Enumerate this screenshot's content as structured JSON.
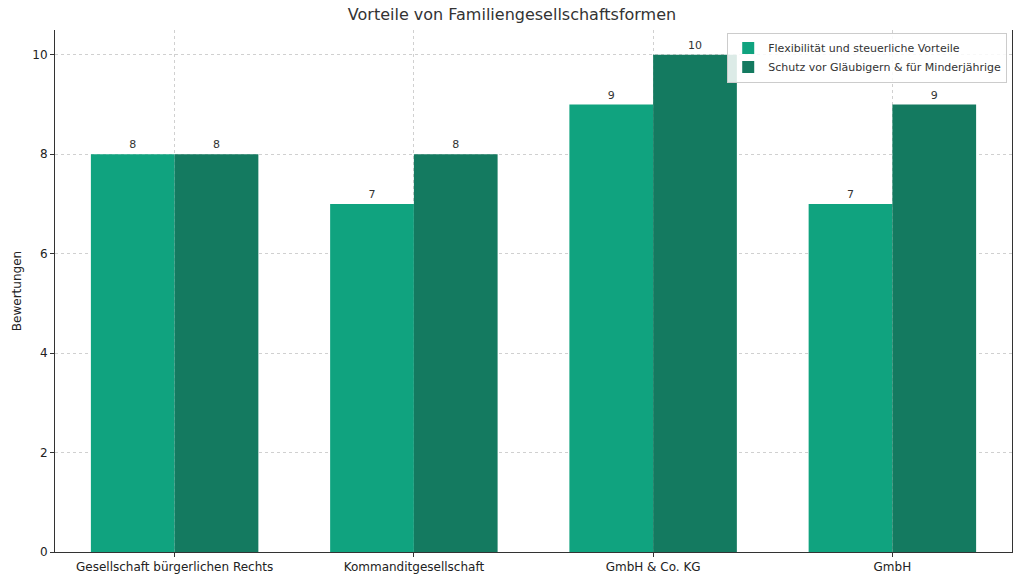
{
  "chart_data": {
    "type": "bar",
    "title": "Vorteile von Familiengesellschaftsformen",
    "y_label": "Bewertungen",
    "categories": [
      "Gesellschaft bürgerlichen Rechts",
      "Kommanditgesellschaft",
      "GmbH & Co. KG",
      "GmbH"
    ],
    "series": [
      {
        "name": "Flexibilität und steuerliche Vorteile",
        "color": "#10a37f",
        "values": [
          8,
          7,
          9,
          7
        ]
      },
      {
        "name": "Schutz vor Gläubigern & für Minderjährige",
        "color": "#147a60",
        "values": [
          8,
          8,
          10,
          9
        ]
      }
    ],
    "ylim": [
      0,
      10.5
    ],
    "yticks": [
      0,
      2,
      4,
      6,
      8,
      10
    ],
    "grid": true,
    "legend": "upper right",
    "data_labels": true
  }
}
